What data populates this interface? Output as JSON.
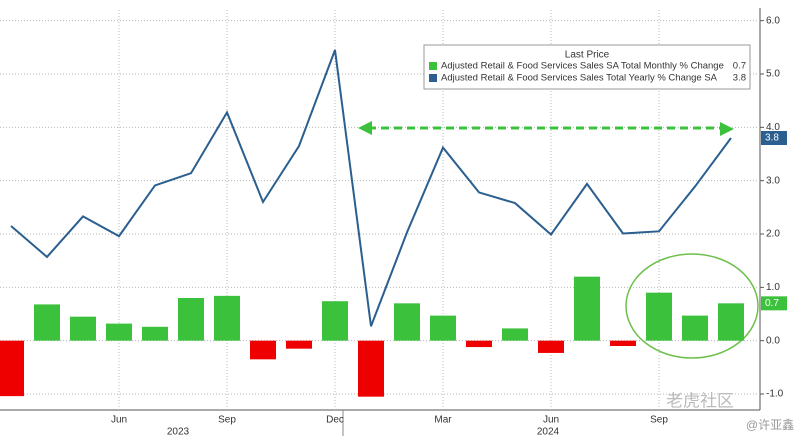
{
  "chart_data": {
    "type": "combo",
    "categories": [
      null,
      null,
      null,
      "Jun",
      null,
      null,
      "Sep",
      null,
      null,
      "Dec",
      null,
      null,
      "Mar",
      null,
      null,
      "Jun",
      null,
      null,
      "Sep",
      null,
      null
    ],
    "years": [
      "2023",
      "2024"
    ],
    "legend_title": "Last Price",
    "series": [
      {
        "name": "Adjusted Retail & Food Services Sales SA Total Monthly % Change",
        "type": "bar",
        "color": "#3cc13c",
        "negative_color": "#ee0000",
        "values": [
          -1.04,
          0.68,
          0.45,
          0.32,
          0.26,
          0.8,
          0.84,
          -0.35,
          -0.15,
          0.74,
          -1.05,
          0.7,
          0.47,
          -0.12,
          0.23,
          -0.23,
          1.2,
          -0.1,
          0.9,
          0.47,
          0.7
        ]
      },
      {
        "name": "Adjusted Retail & Food Services Sales Total Yearly % Change SA",
        "type": "line",
        "color": "#2a5f8f",
        "values": [
          2.15,
          1.57,
          2.33,
          1.96,
          2.91,
          3.14,
          4.28,
          2.6,
          3.65,
          5.45,
          0.27,
          2.03,
          3.62,
          2.78,
          2.58,
          1.99,
          2.94,
          2.01,
          2.05,
          2.89,
          3.8
        ]
      }
    ],
    "ylim": [
      -1.3,
      6.2
    ],
    "yticks": [
      {
        "value": 6,
        "label": "6.0"
      },
      {
        "value": 5,
        "label": "5.0"
      },
      {
        "value": 4,
        "label": "4.0"
      },
      {
        "value": 3,
        "label": "3.0"
      },
      {
        "value": 2,
        "label": "2.0"
      },
      {
        "value": 1,
        "label": "1.0"
      },
      {
        "value": 0,
        "label": "0.0"
      },
      {
        "value": -1,
        "label": "-1.0"
      }
    ],
    "grid": true,
    "watermark": "老虎社区",
    "credit": "@许亚鑫"
  }
}
